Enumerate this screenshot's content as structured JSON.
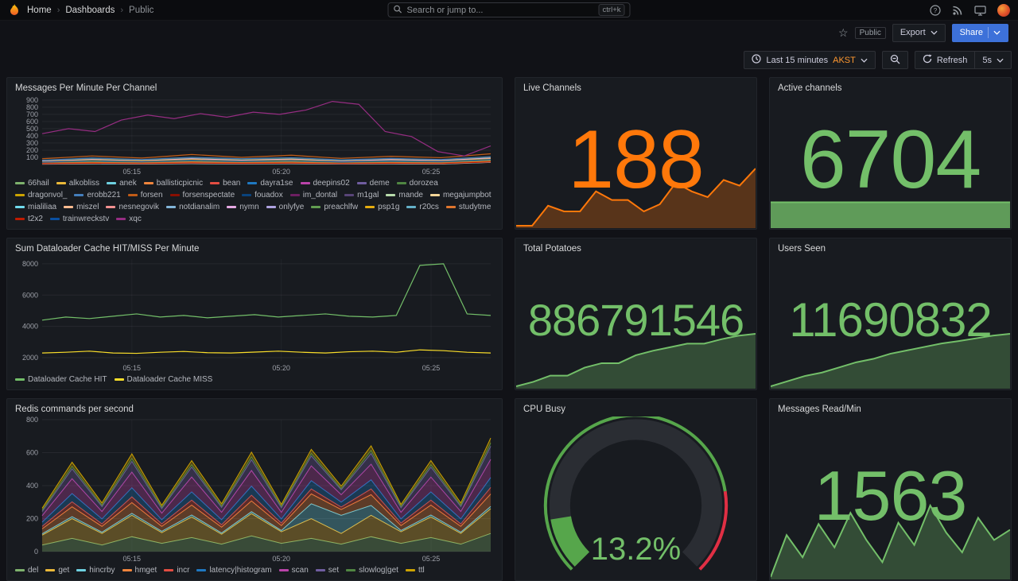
{
  "nav": {
    "breadcrumbs": [
      "Home",
      "Dashboards",
      "Public"
    ],
    "search_placeholder": "Search or jump to...",
    "search_shortcut": "ctrl+k"
  },
  "subnav": {
    "visibility_badge": "Public",
    "export_label": "Export",
    "share_label": "Share"
  },
  "toolbar": {
    "time_range": "Last 15 minutes",
    "timezone": "AKST",
    "refresh_label": "Refresh",
    "refresh_interval": "5s"
  },
  "colors": {
    "accent_blue": "#3D71D9",
    "orange": "#FF780A",
    "green": "#73BF69",
    "yellow": "#FADE2A",
    "red": "#F2495C"
  },
  "panels": {
    "messages_per_minute": {
      "title": "Messages Per Minute Per Channel"
    },
    "live_channels": {
      "title": "Live Channels",
      "value": "188"
    },
    "active_channels": {
      "title": "Active channels",
      "value": "6704"
    },
    "dataloader": {
      "title": "Sum Dataloader Cache HIT/MISS Per Minute"
    },
    "total_potatoes": {
      "title": "Total Potatoes",
      "value": "886791546"
    },
    "users_seen": {
      "title": "Users Seen",
      "value": "11690832"
    },
    "redis": {
      "title": "Redis commands per second"
    },
    "cpu_busy": {
      "title": "CPU Busy",
      "value": "13.2%"
    },
    "messages_read": {
      "title": "Messages Read/Min",
      "value": "1563"
    }
  },
  "chart_data": {
    "messages_per_minute": {
      "type": "line",
      "y_min": 0,
      "y_max": 920,
      "y_ticks": [
        100,
        200,
        300,
        400,
        500,
        600,
        700,
        800,
        900
      ],
      "x_ticks": [
        {
          "label": "05:15",
          "pos": 0.2
        },
        {
          "label": "05:20",
          "pos": 0.533
        },
        {
          "label": "05:25",
          "pos": 0.867
        }
      ],
      "series": [
        {
          "name": "66hail",
          "color": "#7EB26D",
          "values": [
            20,
            35,
            25,
            40,
            30,
            45,
            25,
            35,
            30,
            60
          ]
        },
        {
          "name": "alkobliss",
          "color": "#EAB839",
          "values": [
            15,
            25,
            20,
            30,
            18,
            28,
            22,
            32,
            20,
            55
          ]
        },
        {
          "name": "anek",
          "color": "#6ED0E0",
          "values": [
            40,
            60,
            45,
            70,
            50,
            65,
            40,
            60,
            45,
            80
          ]
        },
        {
          "name": "ballisticpicnic",
          "color": "#EF843C",
          "values": [
            10,
            18,
            12,
            20,
            15,
            22,
            12,
            18,
            14,
            40
          ]
        },
        {
          "name": "bean",
          "color": "#E24D42",
          "values": [
            25,
            40,
            30,
            50,
            35,
            45,
            28,
            42,
            30,
            65
          ]
        },
        {
          "name": "dayra1se",
          "color": "#1F78C1",
          "values": [
            12,
            20,
            15,
            25,
            18,
            22,
            14,
            20,
            16,
            45
          ]
        },
        {
          "name": "deepins02",
          "color": "#BA43A9",
          "values": [
            30,
            50,
            35,
            55,
            40,
            60,
            35,
            50,
            38,
            70
          ]
        },
        {
          "name": "deme",
          "color": "#705DA0",
          "values": [
            18,
            28,
            22,
            35,
            25,
            32,
            20,
            30,
            22,
            50
          ]
        },
        {
          "name": "dorozea",
          "color": "#508642",
          "values": [
            50,
            80,
            60,
            90,
            70,
            85,
            55,
            75,
            60,
            100
          ]
        },
        {
          "name": "dragonvol_",
          "color": "#CCA300",
          "values": [
            8,
            15,
            10,
            18,
            12,
            16,
            9,
            14,
            10,
            35
          ]
        },
        {
          "name": "erobb221",
          "color": "#447EBC",
          "values": [
            60,
            90,
            70,
            100,
            80,
            95,
            65,
            85,
            70,
            110
          ]
        },
        {
          "name": "forsen",
          "color": "#C15C17",
          "values": [
            80,
            120,
            90,
            140,
            100,
            130,
            85,
            115,
            95,
            150
          ]
        },
        {
          "name": "forsenspectate",
          "color": "#890F02",
          "values": [
            25,
            40,
            30,
            45,
            35,
            42,
            28,
            38,
            30,
            60
          ]
        },
        {
          "name": "fouadox",
          "color": "#0A437C",
          "values": [
            10,
            16,
            12,
            20,
            14,
            18,
            11,
            15,
            12,
            38
          ]
        },
        {
          "name": "im_dontal",
          "color": "#6D1F62",
          "values": [
            14,
            22,
            16,
            26,
            18,
            24,
            15,
            20,
            16,
            42
          ]
        },
        {
          "name": "m1gal",
          "color": "#584477",
          "values": [
            20,
            32,
            24,
            38,
            28,
            34,
            22,
            30,
            24,
            52
          ]
        },
        {
          "name": "mande",
          "color": "#B7DBAB",
          "values": [
            35,
            55,
            40,
            60,
            45,
            58,
            38,
            52,
            42,
            75
          ]
        },
        {
          "name": "megajumpbot",
          "color": "#F4D598",
          "values": [
            5,
            10,
            7,
            12,
            8,
            11,
            6,
            9,
            7,
            30
          ]
        },
        {
          "name": "mialiliaa",
          "color": "#70DBED",
          "values": [
            22,
            35,
            26,
            40,
            30,
            38,
            24,
            34,
            26,
            55
          ]
        },
        {
          "name": "miszel",
          "color": "#F9BA8F",
          "values": [
            16,
            26,
            19,
            30,
            22,
            28,
            17,
            24,
            19,
            46
          ]
        },
        {
          "name": "nesnegovik",
          "color": "#F29191",
          "values": [
            28,
            45,
            32,
            50,
            38,
            48,
            30,
            42,
            34,
            62
          ]
        },
        {
          "name": "notdianalim",
          "color": "#82B5D8",
          "values": [
            12,
            19,
            14,
            23,
            16,
            21,
            13,
            18,
            14,
            40
          ]
        },
        {
          "name": "nymn",
          "color": "#E5A8E2",
          "values": [
            45,
            70,
            52,
            80,
            60,
            75,
            48,
            68,
            54,
            90
          ]
        },
        {
          "name": "onlyfye",
          "color": "#AEA2E0",
          "values": [
            9,
            15,
            11,
            18,
            13,
            16,
            10,
            14,
            11,
            34
          ]
        },
        {
          "name": "preachlfw",
          "color": "#629E51",
          "values": [
            24,
            38,
            28,
            44,
            32,
            40,
            26,
            36,
            28,
            58
          ]
        },
        {
          "name": "psp1g",
          "color": "#E5AC0E",
          "values": [
            38,
            60,
            44,
            68,
            50,
            64,
            40,
            56,
            46,
            78
          ]
        },
        {
          "name": "r20cs",
          "color": "#64B0C8",
          "values": [
            7,
            12,
            9,
            14,
            10,
            13,
            8,
            11,
            9,
            32
          ]
        },
        {
          "name": "studytme",
          "color": "#E0752D",
          "values": [
            19,
            30,
            22,
            36,
            26,
            32,
            20,
            28,
            22,
            48
          ]
        },
        {
          "name": "t2x2",
          "color": "#BF1B00",
          "values": [
            11,
            18,
            13,
            21,
            15,
            19,
            12,
            17,
            13,
            36
          ]
        },
        {
          "name": "trainwreckstv",
          "color": "#0A50A1",
          "values": [
            33,
            52,
            38,
            58,
            44,
            55,
            36,
            50,
            40,
            70
          ]
        },
        {
          "name": "xqc",
          "color": "#962D82",
          "values": [
            430,
            500,
            460,
            620,
            690,
            640,
            710,
            660,
            730,
            700,
            760,
            880,
            840,
            460,
            390,
            180,
            120,
            260
          ]
        }
      ]
    },
    "dataloader": {
      "type": "line",
      "y_min": 1800,
      "y_max": 8300,
      "y_ticks": [
        2000,
        4000,
        6000,
        8000
      ],
      "x_ticks": [
        {
          "label": "05:15",
          "pos": 0.2
        },
        {
          "label": "05:20",
          "pos": 0.533
        },
        {
          "label": "05:25",
          "pos": 0.867
        }
      ],
      "series": [
        {
          "name": "Dataloader Cache HIT",
          "color": "#73BF69",
          "values": [
            4400,
            4600,
            4500,
            4650,
            4800,
            4600,
            4700,
            4550,
            4650,
            4750,
            4600,
            4700,
            4800,
            4650,
            4600,
            4700,
            7900,
            8000,
            4800,
            4700
          ]
        },
        {
          "name": "Dataloader Cache MISS",
          "color": "#FADE2A",
          "values": [
            2300,
            2350,
            2420,
            2300,
            2280,
            2350,
            2400,
            2320,
            2300,
            2360,
            2420,
            2350,
            2300,
            2380,
            2420,
            2350,
            2500,
            2450,
            2350,
            2300
          ]
        }
      ]
    },
    "redis": {
      "type": "area",
      "stacked": true,
      "y_min": 0,
      "y_max": 800,
      "y_ticks": [
        0,
        200,
        400,
        600,
        800
      ],
      "x_ticks": [
        {
          "label": "05:15",
          "pos": 0.2
        },
        {
          "label": "05:20",
          "pos": 0.533
        },
        {
          "label": "05:25",
          "pos": 0.867
        }
      ],
      "series": [
        {
          "name": "del",
          "color": "#7EB26D",
          "values": [
            40,
            80,
            40,
            90,
            50,
            85,
            45,
            95,
            50,
            80,
            45,
            90,
            50,
            85,
            45,
            110
          ]
        },
        {
          "name": "get",
          "color": "#EAB839",
          "values": [
            60,
            120,
            70,
            130,
            65,
            125,
            60,
            135,
            70,
            120,
            65,
            130,
            70,
            125,
            65,
            150
          ]
        },
        {
          "name": "hincrby",
          "color": "#6ED0E0",
          "values": [
            8,
            12,
            8,
            12,
            8,
            12,
            8,
            12,
            8,
            90,
            110,
            60,
            8,
            12,
            8,
            14
          ]
        },
        {
          "name": "hmget",
          "color": "#EF843C",
          "values": [
            30,
            60,
            35,
            65,
            30,
            60,
            35,
            65,
            30,
            60,
            35,
            65,
            30,
            60,
            35,
            75
          ]
        },
        {
          "name": "incr",
          "color": "#E24D42",
          "values": [
            15,
            30,
            15,
            35,
            15,
            30,
            15,
            35,
            15,
            30,
            15,
            35,
            15,
            30,
            15,
            40
          ]
        },
        {
          "name": "latency|histogram",
          "color": "#1F78C1",
          "values": [
            25,
            50,
            30,
            55,
            25,
            50,
            30,
            55,
            25,
            50,
            30,
            55,
            25,
            50,
            30,
            60
          ]
        },
        {
          "name": "scan",
          "color": "#BA43A9",
          "values": [
            40,
            90,
            45,
            95,
            40,
            90,
            45,
            95,
            40,
            90,
            45,
            95,
            40,
            90,
            45,
            110
          ]
        },
        {
          "name": "set",
          "color": "#705DA0",
          "values": [
            25,
            60,
            30,
            65,
            28,
            60,
            30,
            65,
            28,
            60,
            30,
            65,
            28,
            60,
            30,
            80
          ]
        },
        {
          "name": "slowlog|get",
          "color": "#508642",
          "values": [
            8,
            15,
            8,
            18,
            8,
            15,
            8,
            18,
            8,
            15,
            8,
            18,
            8,
            15,
            8,
            20
          ]
        },
        {
          "name": "ttl",
          "color": "#CCA300",
          "values": [
            12,
            25,
            14,
            28,
            12,
            25,
            14,
            28,
            12,
            25,
            14,
            28,
            12,
            25,
            14,
            30
          ]
        }
      ]
    },
    "live_channels_spark": {
      "type": "sparkline",
      "color": "#FF780A",
      "fill_opacity": 0.28,
      "values": [
        148,
        148,
        162,
        158,
        158,
        172,
        166,
        166,
        158,
        163,
        178,
        172,
        168,
        180,
        176,
        188
      ]
    },
    "active_channels_spark": {
      "type": "sparkline",
      "color": "#73BF69",
      "render": "flat-bar",
      "values": [
        6700,
        6700,
        6701,
        6702,
        6702,
        6703,
        6703,
        6704,
        6704,
        6704
      ]
    },
    "total_potatoes_spark": {
      "type": "sparkline",
      "color": "#73BF69",
      "fill_opacity": 0.3,
      "values": [
        886762000,
        886764500,
        886768000,
        886768000,
        886772500,
        886775000,
        886775000,
        886779500,
        886782000,
        886784000,
        886786000,
        886786000,
        886788500,
        886790500,
        886791546
      ]
    },
    "users_seen_spark": {
      "type": "sparkline",
      "color": "#73BF69",
      "fill_opacity": 0.3,
      "values": [
        11689300,
        11689450,
        11689600,
        11689700,
        11689850,
        11690000,
        11690100,
        11690250,
        11690350,
        11690450,
        11690550,
        11690620,
        11690700,
        11690780,
        11690832
      ]
    },
    "messages_read_spark": {
      "type": "sparkline",
      "color": "#73BF69",
      "fill_opacity": 0.3,
      "values": [
        1180,
        1520,
        1340,
        1610,
        1420,
        1700,
        1480,
        1300,
        1620,
        1440,
        1760,
        1540,
        1380,
        1660,
        1480,
        1563
      ]
    },
    "cpu_gauge": {
      "type": "gauge",
      "value": 13.2,
      "min": 0,
      "max": 100,
      "unit": "%",
      "color": "#56A64B",
      "track_color": "#2a2d33",
      "threshold_red_from": 80,
      "red": "#E02F44"
    }
  }
}
